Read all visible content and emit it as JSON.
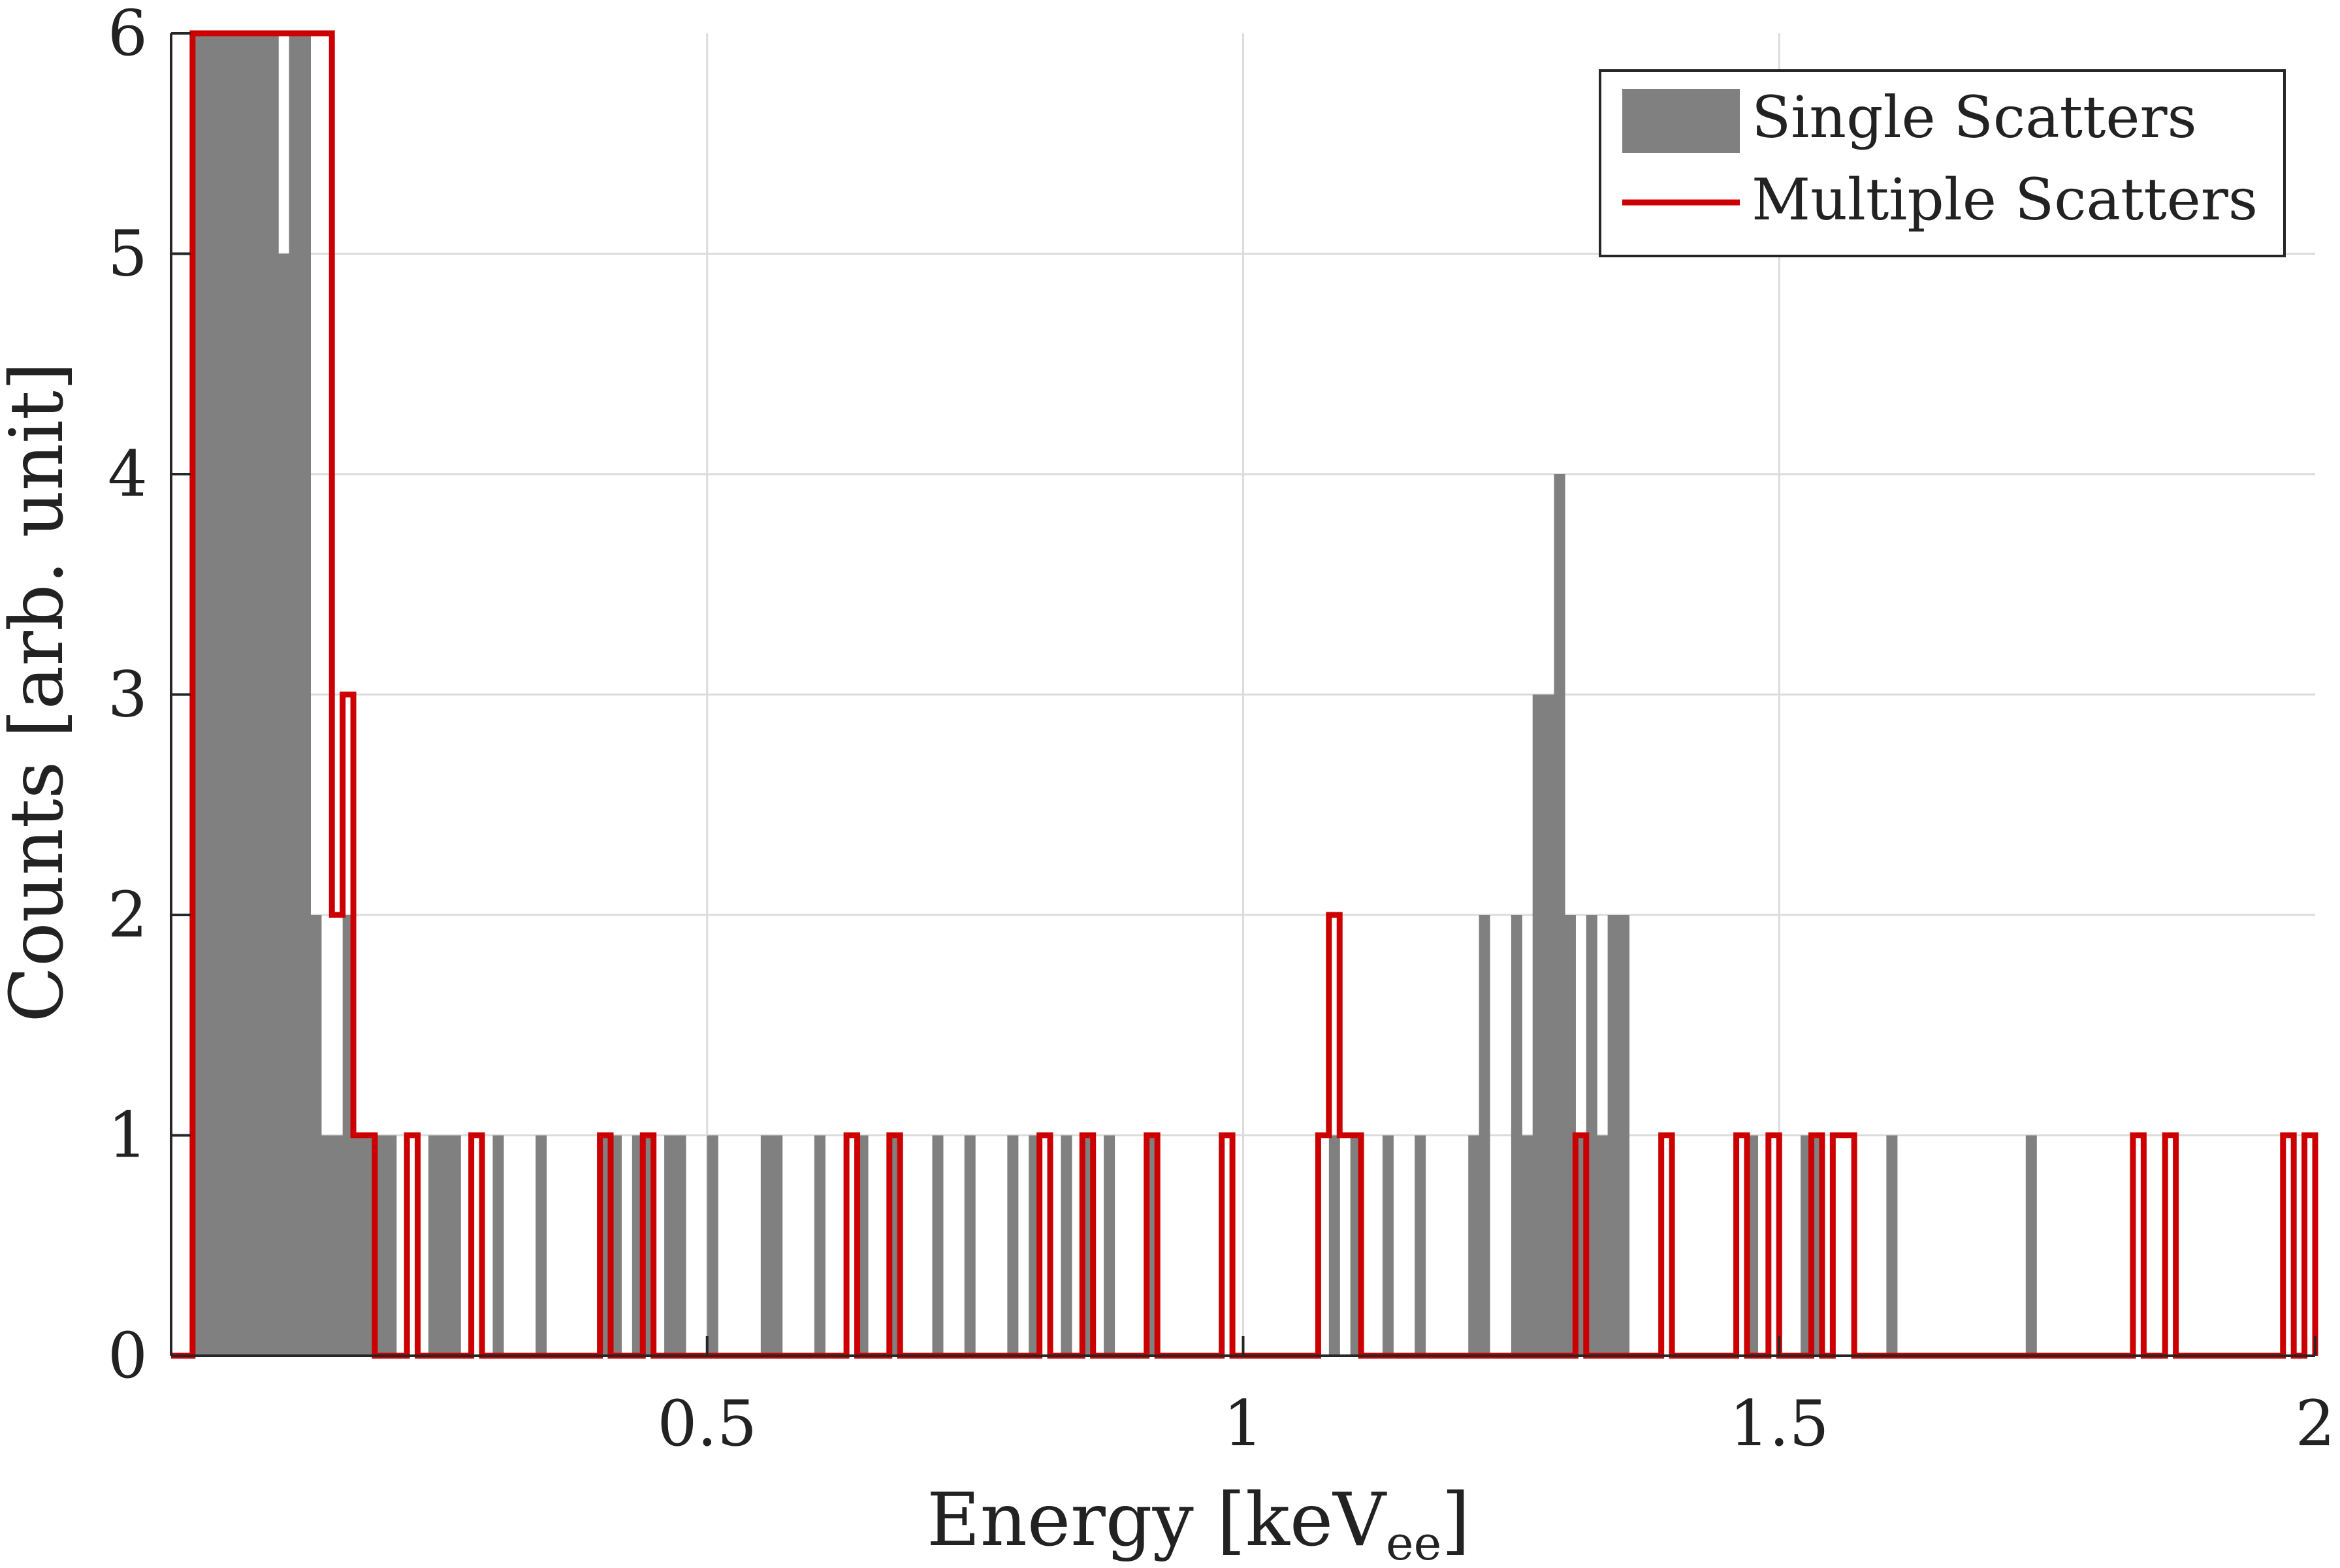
{
  "chart_data": {
    "type": "bar",
    "title": "",
    "xlabel_main": "Energy [keV",
    "xlabel_sub": "ee",
    "xlabel_close": "]",
    "ylabel": "Counts [arb. unit]",
    "xlim": [
      0,
      2
    ],
    "ylim": [
      0,
      6
    ],
    "xticks": [
      0.5,
      1,
      1.5,
      2
    ],
    "xtick_labels": [
      "0.5",
      "1",
      "1.5",
      "2"
    ],
    "yticks": [
      0,
      1,
      2,
      3,
      4,
      5,
      6
    ],
    "ytick_labels": [
      "0",
      "1",
      "2",
      "3",
      "4",
      "5",
      "6"
    ],
    "grid": true,
    "legend_position": "top-right",
    "colors": {
      "single": "#808080",
      "multiple": "#cc0000",
      "grid": "#dcdcdc",
      "axis": "#262626"
    },
    "series": [
      {
        "name": "Single Scatters",
        "style": "filled histogram",
        "bin_width": 0.01,
        "bins": [
          [
            0.02,
            6
          ],
          [
            0.03,
            6
          ],
          [
            0.04,
            6
          ],
          [
            0.05,
            6
          ],
          [
            0.06,
            6
          ],
          [
            0.07,
            6
          ],
          [
            0.08,
            6
          ],
          [
            0.09,
            6
          ],
          [
            0.1,
            5
          ],
          [
            0.11,
            6
          ],
          [
            0.12,
            6
          ],
          [
            0.13,
            2
          ],
          [
            0.14,
            1
          ],
          [
            0.15,
            1
          ],
          [
            0.16,
            2
          ],
          [
            0.17,
            1
          ],
          [
            0.18,
            1
          ],
          [
            0.19,
            1
          ],
          [
            0.2,
            1
          ],
          [
            0.24,
            1
          ],
          [
            0.25,
            1
          ],
          [
            0.26,
            1
          ],
          [
            0.3,
            1
          ],
          [
            0.34,
            1
          ],
          [
            0.4,
            1
          ],
          [
            0.41,
            1
          ],
          [
            0.43,
            1
          ],
          [
            0.44,
            1
          ],
          [
            0.46,
            1
          ],
          [
            0.47,
            1
          ],
          [
            0.5,
            1
          ],
          [
            0.55,
            1
          ],
          [
            0.56,
            1
          ],
          [
            0.6,
            1
          ],
          [
            0.64,
            1
          ],
          [
            0.67,
            1
          ],
          [
            0.71,
            1
          ],
          [
            0.74,
            1
          ],
          [
            0.78,
            1
          ],
          [
            0.8,
            1
          ],
          [
            0.83,
            1
          ],
          [
            0.85,
            1
          ],
          [
            0.87,
            1
          ],
          [
            0.91,
            1
          ],
          [
            1.08,
            1
          ],
          [
            1.1,
            1
          ],
          [
            1.13,
            1
          ],
          [
            1.16,
            1
          ],
          [
            1.21,
            1
          ],
          [
            1.22,
            2
          ],
          [
            1.25,
            2
          ],
          [
            1.26,
            1
          ],
          [
            1.27,
            3
          ],
          [
            1.28,
            3
          ],
          [
            1.29,
            4
          ],
          [
            1.3,
            2
          ],
          [
            1.31,
            1
          ],
          [
            1.32,
            2
          ],
          [
            1.33,
            1
          ],
          [
            1.34,
            2
          ],
          [
            1.35,
            2
          ],
          [
            1.47,
            1
          ],
          [
            1.52,
            1
          ],
          [
            1.53,
            1
          ],
          [
            1.6,
            1
          ],
          [
            1.73,
            1
          ]
        ]
      },
      {
        "name": "Multiple Scatters",
        "style": "stairs",
        "steps": [
          [
            0.0,
            0
          ],
          [
            0.02,
            6
          ],
          [
            0.04,
            6
          ],
          [
            0.15,
            2
          ],
          [
            0.16,
            3
          ],
          [
            0.17,
            1
          ],
          [
            0.19,
            0
          ],
          [
            0.22,
            1
          ],
          [
            0.23,
            0
          ],
          [
            0.28,
            1
          ],
          [
            0.29,
            0
          ],
          [
            0.4,
            1
          ],
          [
            0.41,
            0
          ],
          [
            0.44,
            1
          ],
          [
            0.45,
            0
          ],
          [
            0.63,
            1
          ],
          [
            0.64,
            0
          ],
          [
            0.67,
            1
          ],
          [
            0.68,
            0
          ],
          [
            0.81,
            1
          ],
          [
            0.82,
            0
          ],
          [
            0.85,
            1
          ],
          [
            0.86,
            0
          ],
          [
            0.91,
            1
          ],
          [
            0.92,
            0
          ],
          [
            0.98,
            1
          ],
          [
            0.99,
            0
          ],
          [
            1.07,
            1
          ],
          [
            1.08,
            2
          ],
          [
            1.09,
            1
          ],
          [
            1.11,
            0
          ],
          [
            1.31,
            1
          ],
          [
            1.32,
            0
          ],
          [
            1.39,
            1
          ],
          [
            1.4,
            0
          ],
          [
            1.46,
            1
          ],
          [
            1.47,
            0
          ],
          [
            1.49,
            1
          ],
          [
            1.5,
            0
          ],
          [
            1.53,
            1
          ],
          [
            1.54,
            0
          ],
          [
            1.55,
            1
          ],
          [
            1.57,
            0
          ],
          [
            1.83,
            1
          ],
          [
            1.84,
            0
          ],
          [
            1.86,
            1
          ],
          [
            1.87,
            0
          ],
          [
            1.97,
            1
          ],
          [
            1.98,
            0
          ],
          [
            1.99,
            1
          ],
          [
            2.0,
            0
          ]
        ]
      }
    ]
  }
}
